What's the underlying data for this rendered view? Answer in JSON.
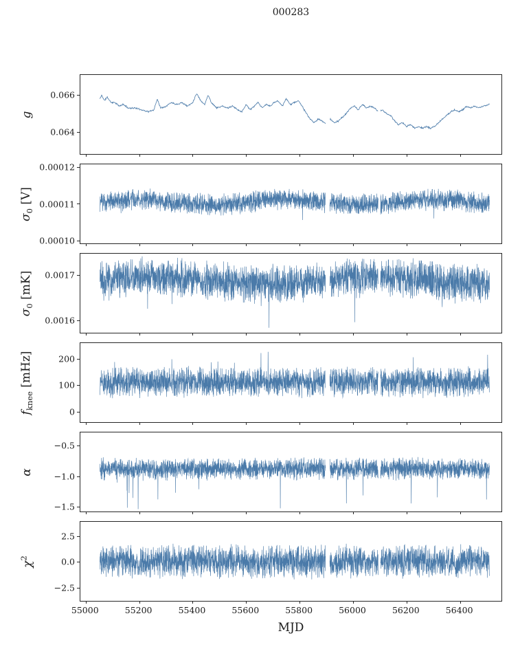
{
  "title": "000283",
  "xlabel": "MJD",
  "chart_data": {
    "type": "line",
    "line_color": "#4a7aa9",
    "axis_color": "#262626",
    "legend": "none",
    "grid": false,
    "x": {
      "lim": [
        54980,
        56555
      ],
      "data_start": 55053,
      "data_end": 56510,
      "ticks": [
        {
          "v": 55000,
          "l": "55000"
        },
        {
          "v": 55200,
          "l": "55200"
        },
        {
          "v": 55400,
          "l": "55400"
        },
        {
          "v": 55600,
          "l": "55600"
        },
        {
          "v": 55800,
          "l": "55800"
        },
        {
          "v": 56000,
          "l": "56000"
        },
        {
          "v": 56200,
          "l": "56200"
        },
        {
          "v": 56400,
          "l": "56400"
        }
      ]
    },
    "gaps": [
      [
        55897,
        55913
      ],
      [
        56094,
        56103
      ]
    ],
    "panels": [
      {
        "id": "g",
        "label": {
          "base": "g",
          "suffix": ""
        },
        "ylim": [
          0.0628,
          0.0671
        ],
        "yticks": [
          {
            "v": 0.066,
            "l": "0.066"
          },
          {
            "v": 0.064,
            "l": "0.064"
          }
        ],
        "series": {
          "kind": "walk",
          "amp": 5e-05,
          "n": 1100,
          "seed": 11,
          "lw": 0.8,
          "keypoints": [
            [
              55053,
              0.0658
            ],
            [
              55060,
              0.066
            ],
            [
              55070,
              0.0657
            ],
            [
              55080,
              0.0659
            ],
            [
              55095,
              0.0656
            ],
            [
              55110,
              0.0656
            ],
            [
              55125,
              0.0654
            ],
            [
              55140,
              0.0655
            ],
            [
              55160,
              0.0653
            ],
            [
              55185,
              0.0653
            ],
            [
              55210,
              0.0652
            ],
            [
              55235,
              0.0651
            ],
            [
              55255,
              0.0652
            ],
            [
              55268,
              0.0658
            ],
            [
              55280,
              0.0653
            ],
            [
              55300,
              0.0654
            ],
            [
              55320,
              0.0656
            ],
            [
              55340,
              0.0655
            ],
            [
              55360,
              0.0656
            ],
            [
              55380,
              0.0654
            ],
            [
              55400,
              0.0656
            ],
            [
              55415,
              0.0661
            ],
            [
              55430,
              0.0657
            ],
            [
              55445,
              0.0655
            ],
            [
              55458,
              0.066
            ],
            [
              55470,
              0.0656
            ],
            [
              55490,
              0.0653
            ],
            [
              55510,
              0.0654
            ],
            [
              55530,
              0.0653
            ],
            [
              55550,
              0.0654
            ],
            [
              55570,
              0.0652
            ],
            [
              55585,
              0.0651
            ],
            [
              55600,
              0.0655
            ],
            [
              55615,
              0.0652
            ],
            [
              55630,
              0.0654
            ],
            [
              55645,
              0.0656
            ],
            [
              55660,
              0.0653
            ],
            [
              55675,
              0.0655
            ],
            [
              55690,
              0.0654
            ],
            [
              55705,
              0.0656
            ],
            [
              55720,
              0.0657
            ],
            [
              55735,
              0.0654
            ],
            [
              55750,
              0.0658
            ],
            [
              55765,
              0.0655
            ],
            [
              55780,
              0.0656
            ],
            [
              55795,
              0.0657
            ],
            [
              55810,
              0.0654
            ],
            [
              55825,
              0.065
            ],
            [
              55840,
              0.0647
            ],
            [
              55855,
              0.0645
            ],
            [
              55870,
              0.0647
            ],
            [
              55885,
              0.0646
            ],
            [
              55900,
              0.0644
            ],
            [
              55915,
              0.0647
            ],
            [
              55930,
              0.0645
            ],
            [
              55945,
              0.0646
            ],
            [
              55960,
              0.0648
            ],
            [
              55975,
              0.065
            ],
            [
              55990,
              0.0653
            ],
            [
              56005,
              0.0654
            ],
            [
              56020,
              0.0652
            ],
            [
              56035,
              0.0655
            ],
            [
              56050,
              0.0653
            ],
            [
              56065,
              0.0654
            ],
            [
              56080,
              0.0653
            ],
            [
              56095,
              0.0651
            ],
            [
              56110,
              0.0652
            ],
            [
              56125,
              0.065
            ],
            [
              56140,
              0.0649
            ],
            [
              56155,
              0.0646
            ],
            [
              56170,
              0.0644
            ],
            [
              56185,
              0.0645
            ],
            [
              56200,
              0.0643
            ],
            [
              56215,
              0.0644
            ],
            [
              56230,
              0.0642
            ],
            [
              56245,
              0.0643
            ],
            [
              56260,
              0.0642
            ],
            [
              56275,
              0.0643
            ],
            [
              56290,
              0.0642
            ],
            [
              56305,
              0.0643
            ],
            [
              56320,
              0.0645
            ],
            [
              56335,
              0.0647
            ],
            [
              56350,
              0.0649
            ],
            [
              56365,
              0.0651
            ],
            [
              56380,
              0.0652
            ],
            [
              56395,
              0.0651
            ],
            [
              56410,
              0.0652
            ],
            [
              56425,
              0.0654
            ],
            [
              56440,
              0.0653
            ],
            [
              56455,
              0.0654
            ],
            [
              56470,
              0.0653
            ],
            [
              56485,
              0.0654
            ],
            [
              56510,
              0.0655
            ]
          ]
        }
      },
      {
        "id": "sigma0-v",
        "label": {
          "base": "σ",
          "sub": "0",
          "suffix": " [V]"
        },
        "ylim": [
          9.92e-05,
          0.0001208
        ],
        "yticks": [
          {
            "v": 0.00012,
            "l": "0.00012"
          },
          {
            "v": 0.00011,
            "l": "0.00011"
          },
          {
            "v": 0.0001,
            "l": "0.00010"
          }
        ],
        "series": {
          "kind": "noise",
          "mean": 0.0001105,
          "amp": 3.2e-06,
          "mod_amp": 7e-07,
          "mod_period": 560,
          "spike_rate": 0.004,
          "spike_amp": 3.2e-06,
          "spike_dir": -1,
          "n": 2800,
          "seed": 23,
          "lw": 0.65
        }
      },
      {
        "id": "sigma0-mk",
        "label": {
          "base": "σ",
          "sub": "0",
          "suffix": " [mK]"
        },
        "ylim": [
          0.001572,
          0.001748
        ],
        "yticks": [
          {
            "v": 0.0017,
            "l": "0.0017"
          },
          {
            "v": 0.0016,
            "l": "0.0016"
          }
        ],
        "series": {
          "kind": "noise",
          "mean": 0.001688,
          "amp": 4.8e-05,
          "mod_amp": 8e-06,
          "mod_period": 820,
          "spike_rate": 0.006,
          "spike_amp": 5e-05,
          "spike_dir": -1,
          "n": 2800,
          "seed": 37,
          "lw": 0.65
        }
      },
      {
        "id": "fknee",
        "label": {
          "base": "f",
          "sub": "knee",
          "suffix": " [mHz]"
        },
        "ylim": [
          -38,
          258
        ],
        "yticks": [
          {
            "v": 200,
            "l": "200"
          },
          {
            "v": 100,
            "l": "100"
          },
          {
            "v": 0,
            "l": "0"
          }
        ],
        "series": {
          "kind": "noise",
          "mean": 112,
          "amp": 62,
          "mod_amp": 0,
          "mod_period": 1000,
          "spike_rate": 0.003,
          "spike_amp": 75,
          "spike_dir": 1,
          "n": 2800,
          "seed": 51,
          "lw": 0.65
        }
      },
      {
        "id": "alpha",
        "label": {
          "base": "α",
          "suffix": ""
        },
        "ylim": [
          -1.58,
          -0.28
        ],
        "yticks": [
          {
            "v": -0.5,
            "l": "−0.5"
          },
          {
            "v": -1.0,
            "l": "−1.0"
          },
          {
            "v": -1.5,
            "l": "−1.5"
          }
        ],
        "series": {
          "kind": "noise",
          "mean": -0.88,
          "amp": 0.2,
          "mod_amp": 0,
          "mod_period": 1000,
          "spike_rate": 0.006,
          "spike_amp": 0.45,
          "spike_dir": -1,
          "n": 2800,
          "seed": 67,
          "lw": 0.65
        }
      },
      {
        "id": "chi2",
        "label": {
          "base": "χ",
          "sup": "2",
          "suffix": ""
        },
        "ylim": [
          -3.8,
          3.9
        ],
        "yticks": [
          {
            "v": 2.5,
            "l": "2.5"
          },
          {
            "v": 0.0,
            "l": "0.0"
          },
          {
            "v": -2.5,
            "l": "−2.5"
          }
        ],
        "series": {
          "kind": "noise",
          "mean": 0.05,
          "amp": 1.8,
          "mod_amp": 0,
          "mod_period": 1000,
          "spike_rate": 0.004,
          "spike_amp": 1.4,
          "spike_dir": 0,
          "n": 2800,
          "seed": 83,
          "lw": 0.65
        }
      }
    ]
  }
}
